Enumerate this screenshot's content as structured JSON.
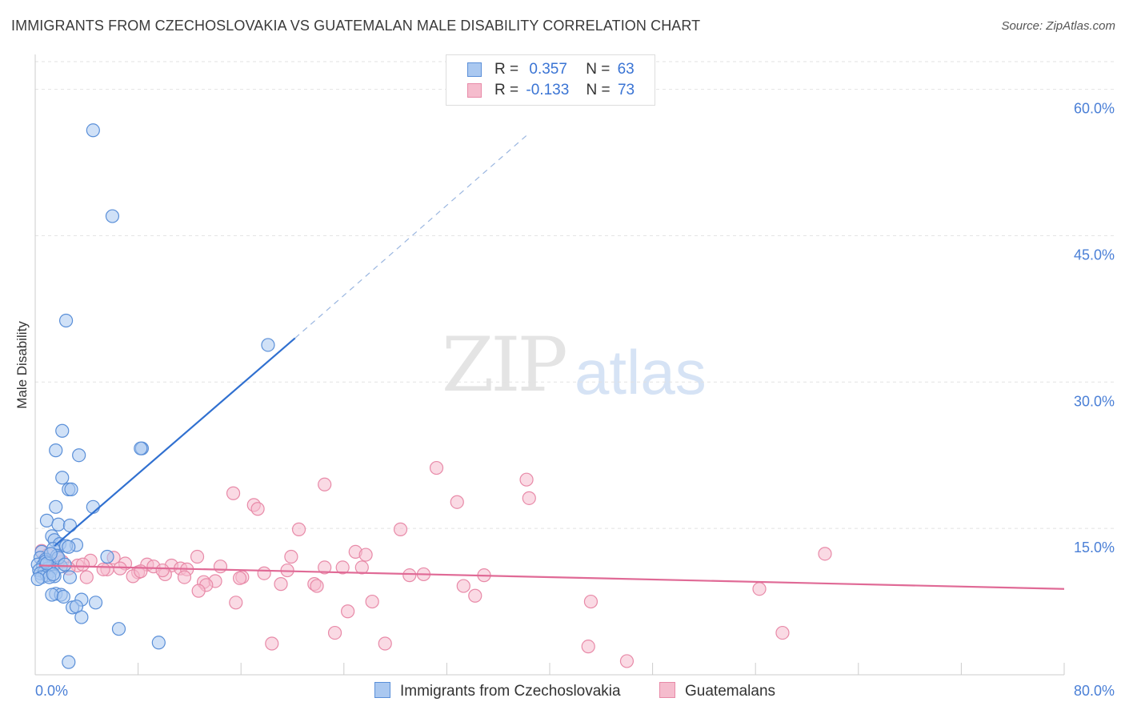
{
  "title": "IMMIGRANTS FROM CZECHOSLOVAKIA VS GUATEMALAN MALE DISABILITY CORRELATION CHART",
  "source": "Source: ZipAtlas.com",
  "watermark": {
    "zip": "ZIP",
    "atlas": "atlas"
  },
  "legend": {
    "rows": [
      {
        "r_label": "R =",
        "r_value": "0.357",
        "n_label": "N =",
        "n_value": "63"
      },
      {
        "r_label": "R =",
        "r_value": "-0.133",
        "n_label": "N =",
        "n_value": "73"
      }
    ]
  },
  "colors": {
    "blue_fill": "#aac8f0",
    "blue_stroke": "#5a8fd8",
    "blue_line": "#3070d0",
    "pink_fill": "#f5bccd",
    "pink_stroke": "#e88aa8",
    "pink_line": "#e06a96",
    "grid": "#e2e2e2",
    "tick_text": "#4a7fd6"
  },
  "chart_data": {
    "type": "scatter",
    "title": "IMMIGRANTS FROM CZECHOSLOVAKIA VS GUATEMALAN MALE DISABILITY CORRELATION CHART",
    "xlabel": "",
    "ylabel": "Male Disability",
    "xlim": [
      0,
      80
    ],
    "ylim": [
      0,
      63
    ],
    "x_tick_labels": [
      "0.0%",
      "80.0%"
    ],
    "y_ticks": [
      15,
      30,
      45,
      60
    ],
    "y_tick_labels": [
      "15.0%",
      "30.0%",
      "45.0%",
      "60.0%"
    ],
    "legend_placement": "top-center",
    "series": [
      {
        "name": "Immigrants from Czechoslovakia",
        "color": "#aac8f0",
        "trend": {
          "x0": 1.5,
          "y0": 13.2,
          "x1": 20.2,
          "y1": 34.5,
          "dash_to_x": 38.4,
          "dash_to_y": 55.5
        },
        "points": [
          [
            4.5,
            55.8
          ],
          [
            6.0,
            47.0
          ],
          [
            2.4,
            36.3
          ],
          [
            18.1,
            33.8
          ],
          [
            2.1,
            25.0
          ],
          [
            1.6,
            23.0
          ],
          [
            3.4,
            22.5
          ],
          [
            8.3,
            23.2
          ],
          [
            8.2,
            23.2
          ],
          [
            2.1,
            20.2
          ],
          [
            2.6,
            19.0
          ],
          [
            2.8,
            19.0
          ],
          [
            1.6,
            17.2
          ],
          [
            4.5,
            17.2
          ],
          [
            0.9,
            15.8
          ],
          [
            1.8,
            15.4
          ],
          [
            2.7,
            15.3
          ],
          [
            1.3,
            14.2
          ],
          [
            1.5,
            13.8
          ],
          [
            1.9,
            13.4
          ],
          [
            3.2,
            13.3
          ],
          [
            2.4,
            13.2
          ],
          [
            2.6,
            13.1
          ],
          [
            0.5,
            12.6
          ],
          [
            1.4,
            12.9
          ],
          [
            1.7,
            12.2
          ],
          [
            0.4,
            12.0
          ],
          [
            5.6,
            12.1
          ],
          [
            0.8,
            11.8
          ],
          [
            1.1,
            11.5
          ],
          [
            0.2,
            11.3
          ],
          [
            0.6,
            11.2
          ],
          [
            1.3,
            11.0
          ],
          [
            1.0,
            10.9
          ],
          [
            2.0,
            11.1
          ],
          [
            0.3,
            10.7
          ],
          [
            0.7,
            10.5
          ],
          [
            1.2,
            10.6
          ],
          [
            0.4,
            10.4
          ],
          [
            0.9,
            10.2
          ],
          [
            1.5,
            10.1
          ],
          [
            0.5,
            10.0
          ],
          [
            1.1,
            10.0
          ],
          [
            2.7,
            10.0
          ],
          [
            0.2,
            9.8
          ],
          [
            1.4,
            10.3
          ],
          [
            0.8,
            11.6
          ],
          [
            1.6,
            8.3
          ],
          [
            2.0,
            8.2
          ],
          [
            1.3,
            8.2
          ],
          [
            2.2,
            8.0
          ],
          [
            3.6,
            7.7
          ],
          [
            4.7,
            7.4
          ],
          [
            2.9,
            6.9
          ],
          [
            3.2,
            7.0
          ],
          [
            3.6,
            5.9
          ],
          [
            6.5,
            4.7
          ],
          [
            9.6,
            3.3
          ],
          [
            2.6,
            1.3
          ],
          [
            0.9,
            11.4
          ],
          [
            1.8,
            12.0
          ],
          [
            1.2,
            12.4
          ],
          [
            2.3,
            11.3
          ]
        ]
      },
      {
        "name": "Guatemalans",
        "color": "#f5bccd",
        "trend": {
          "x0": 0.3,
          "y0": 11.2,
          "x1": 80.0,
          "y1": 8.8
        },
        "points": [
          [
            31.2,
            21.2
          ],
          [
            38.2,
            20.0
          ],
          [
            22.5,
            19.5
          ],
          [
            15.4,
            18.6
          ],
          [
            38.4,
            18.1
          ],
          [
            32.8,
            17.7
          ],
          [
            17.0,
            17.4
          ],
          [
            17.3,
            17.0
          ],
          [
            20.5,
            14.9
          ],
          [
            28.4,
            14.9
          ],
          [
            24.9,
            12.6
          ],
          [
            25.7,
            12.3
          ],
          [
            61.4,
            12.4
          ],
          [
            12.6,
            12.1
          ],
          [
            19.9,
            12.1
          ],
          [
            6.1,
            12.0
          ],
          [
            4.3,
            11.7
          ],
          [
            2.1,
            11.6
          ],
          [
            7.0,
            11.4
          ],
          [
            8.7,
            11.3
          ],
          [
            10.6,
            11.2
          ],
          [
            14.4,
            11.1
          ],
          [
            9.2,
            11.1
          ],
          [
            11.3,
            10.9
          ],
          [
            6.6,
            10.9
          ],
          [
            5.6,
            10.8
          ],
          [
            11.8,
            10.8
          ],
          [
            22.5,
            11.0
          ],
          [
            23.9,
            11.0
          ],
          [
            25.4,
            11.0
          ],
          [
            3.3,
            11.2
          ],
          [
            1.5,
            11.3
          ],
          [
            0.9,
            11.5
          ],
          [
            8.0,
            10.5
          ],
          [
            10.1,
            10.3
          ],
          [
            17.8,
            10.4
          ],
          [
            19.6,
            10.7
          ],
          [
            29.1,
            10.2
          ],
          [
            30.2,
            10.3
          ],
          [
            34.9,
            10.2
          ],
          [
            4.0,
            10.0
          ],
          [
            7.6,
            10.1
          ],
          [
            11.6,
            10.0
          ],
          [
            16.1,
            10.0
          ],
          [
            15.9,
            9.9
          ],
          [
            13.1,
            9.5
          ],
          [
            14.0,
            9.6
          ],
          [
            19.1,
            9.3
          ],
          [
            21.7,
            9.3
          ],
          [
            21.9,
            9.1
          ],
          [
            33.3,
            9.1
          ],
          [
            13.3,
            9.2
          ],
          [
            56.3,
            8.8
          ],
          [
            12.7,
            8.6
          ],
          [
            34.2,
            8.1
          ],
          [
            15.6,
            7.4
          ],
          [
            26.2,
            7.5
          ],
          [
            43.2,
            7.5
          ],
          [
            24.3,
            6.5
          ],
          [
            23.3,
            4.3
          ],
          [
            58.1,
            4.3
          ],
          [
            18.4,
            3.2
          ],
          [
            27.2,
            3.2
          ],
          [
            43.0,
            2.9
          ],
          [
            46.0,
            1.4
          ],
          [
            2.6,
            10.9
          ],
          [
            5.3,
            10.8
          ],
          [
            9.9,
            10.7
          ],
          [
            0.5,
            12.7
          ],
          [
            1.0,
            12.3
          ],
          [
            1.8,
            11.9
          ],
          [
            3.7,
            11.3
          ],
          [
            8.2,
            10.6
          ]
        ]
      }
    ]
  },
  "bottom_legend": [
    {
      "label": "Immigrants from Czechoslovakia"
    },
    {
      "label": "Guatemalans"
    }
  ]
}
